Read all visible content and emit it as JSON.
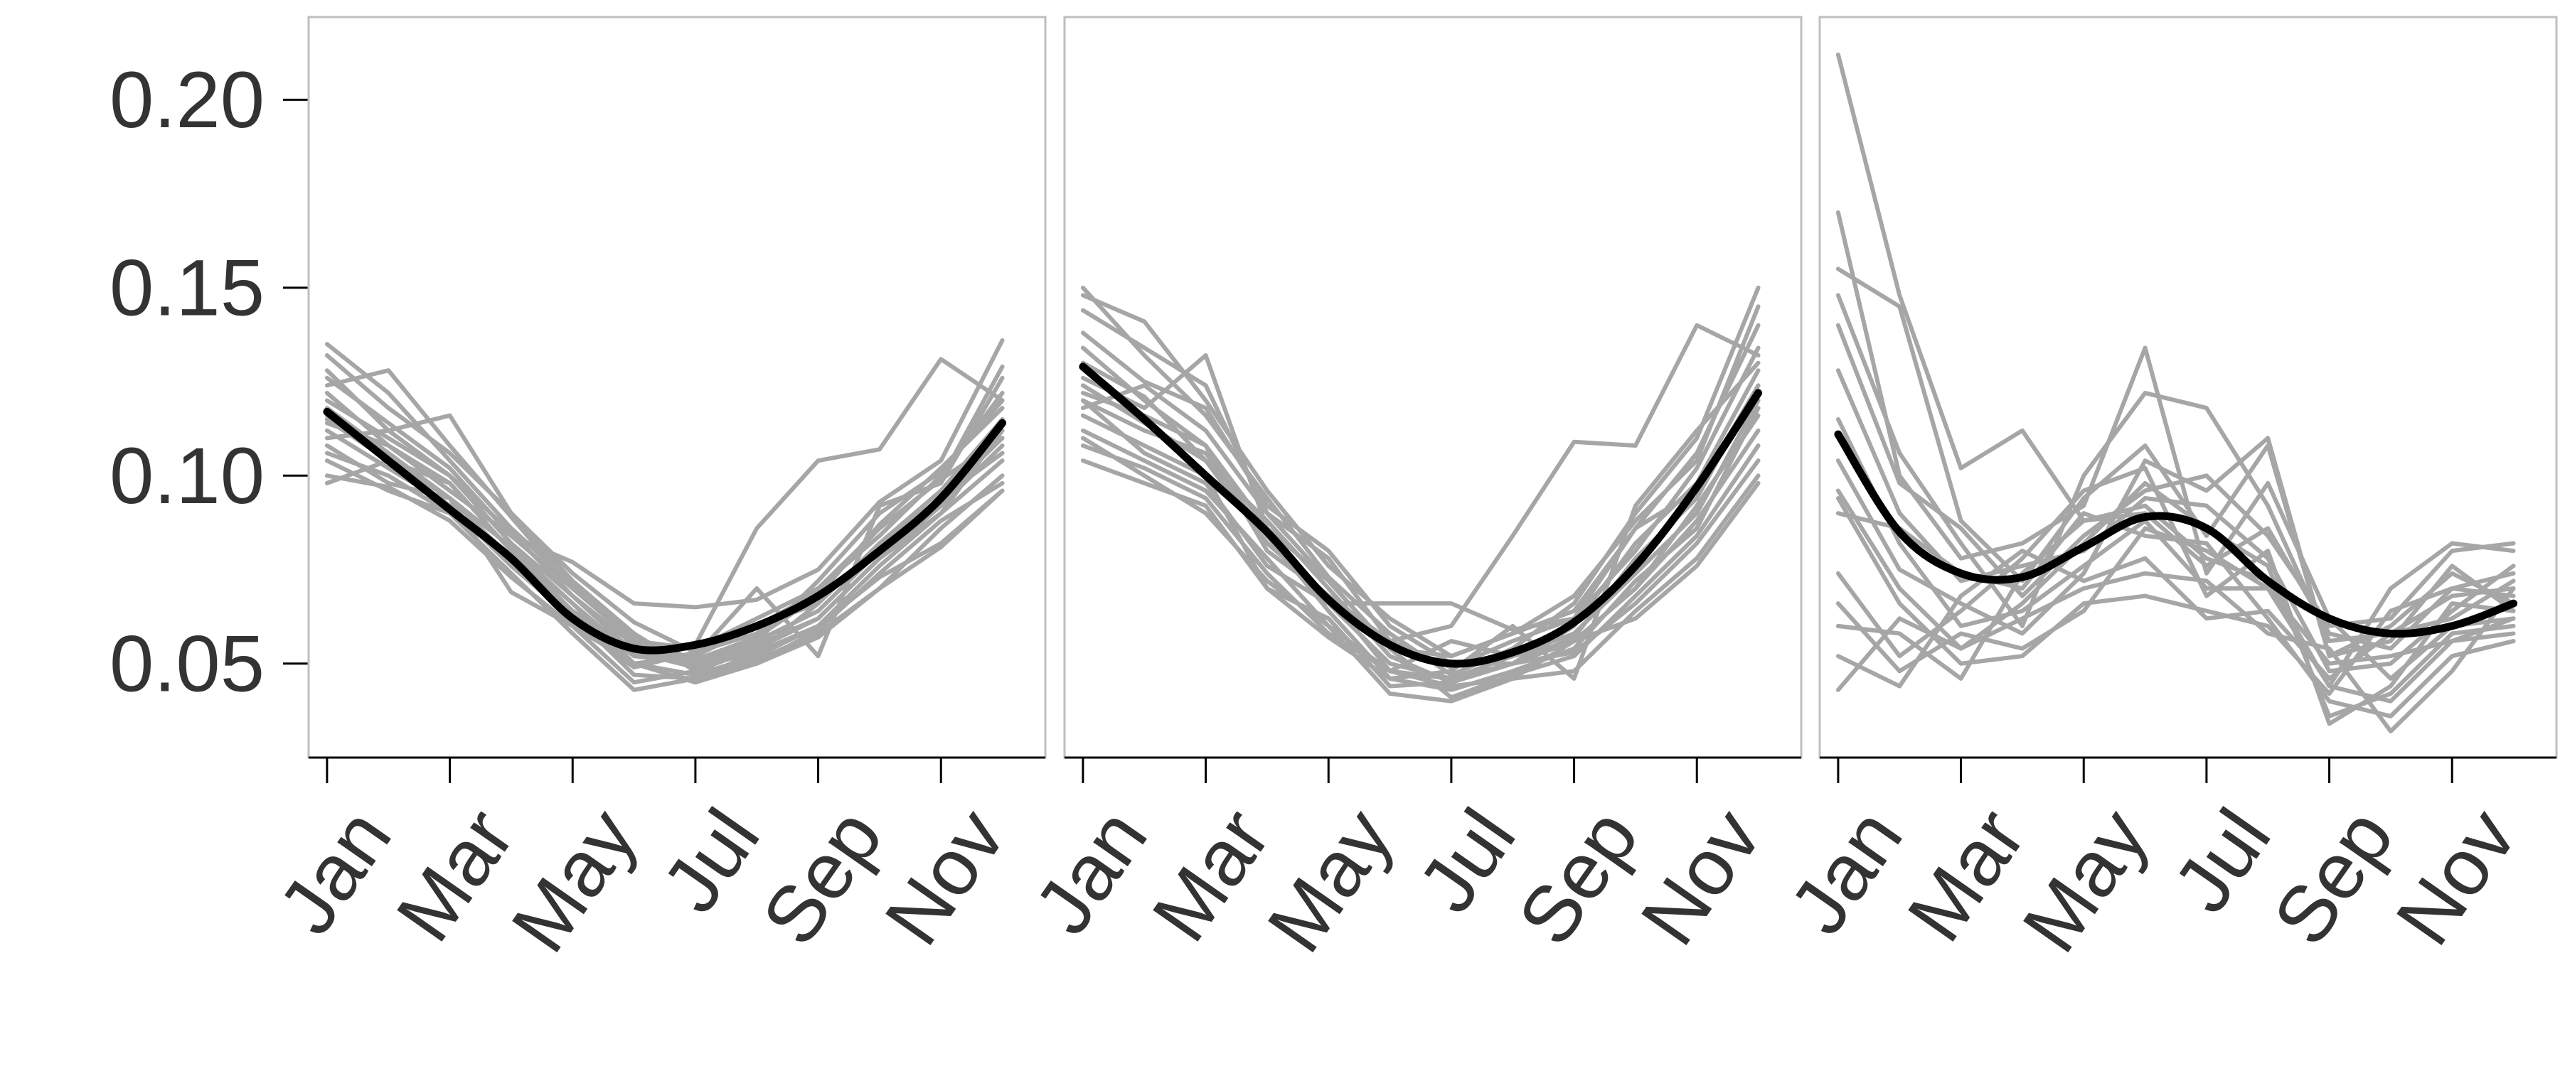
{
  "chart_data": {
    "type": "line",
    "x_ticks": [
      "Jan",
      "Mar",
      "May",
      "Jul",
      "Sep",
      "Nov"
    ],
    "y_ticks": [
      "0.05",
      "0.10",
      "0.15",
      "0.20"
    ],
    "y_tick_values": [
      0.05,
      0.1,
      0.15,
      0.2
    ],
    "ylim": [
      0.025,
      0.222
    ],
    "xlim": [
      0.7,
      12.7
    ],
    "grid": false,
    "colors": {
      "individual": "#a6a6a6",
      "mean": "#000000",
      "axis": "#000000",
      "frame": "#bfbfbf",
      "text": "#333333"
    },
    "panels": [
      {
        "x": [
          1,
          2,
          3,
          4,
          5,
          6,
          7,
          8,
          9,
          10,
          11,
          12
        ],
        "mean": [
          0.117,
          0.104,
          0.091,
          0.078,
          0.062,
          0.054,
          0.055,
          0.06,
          0.068,
          0.08,
          0.094,
          0.114
        ],
        "series": [
          {
            "values": [
              0.135,
              0.122,
              0.104,
              0.086,
              0.071,
              0.056,
              0.05,
              0.056,
              0.072,
              0.09,
              0.101,
              0.12
            ]
          },
          {
            "values": [
              0.132,
              0.118,
              0.106,
              0.09,
              0.074,
              0.061,
              0.053,
              0.058,
              0.07,
              0.086,
              0.099,
              0.11
            ]
          },
          {
            "values": [
              0.128,
              0.112,
              0.1,
              0.082,
              0.068,
              0.055,
              0.049,
              0.053,
              0.066,
              0.082,
              0.094,
              0.106
            ]
          },
          {
            "values": [
              0.124,
              0.128,
              0.108,
              0.089,
              0.07,
              0.057,
              0.051,
              0.057,
              0.068,
              0.087,
              0.102,
              0.118
            ]
          },
          {
            "values": [
              0.12,
              0.11,
              0.1,
              0.085,
              0.068,
              0.053,
              0.049,
              0.055,
              0.062,
              0.078,
              0.092,
              0.108
            ]
          },
          {
            "values": [
              0.118,
              0.106,
              0.094,
              0.081,
              0.066,
              0.05,
              0.047,
              0.052,
              0.06,
              0.076,
              0.09,
              0.104
            ]
          },
          {
            "values": [
              0.115,
              0.104,
              0.098,
              0.08,
              0.064,
              0.052,
              0.05,
              0.056,
              0.064,
              0.08,
              0.094,
              0.11
            ]
          },
          {
            "values": [
              0.112,
              0.102,
              0.092,
              0.076,
              0.063,
              0.047,
              0.046,
              0.051,
              0.058,
              0.07,
              0.086,
              0.1
            ]
          },
          {
            "values": [
              0.11,
              0.112,
              0.116,
              0.09,
              0.072,
              0.058,
              0.048,
              0.054,
              0.062,
              0.078,
              0.09,
              0.112
            ]
          },
          {
            "values": [
              0.108,
              0.098,
              0.094,
              0.069,
              0.06,
              0.045,
              0.048,
              0.05,
              0.059,
              0.074,
              0.088,
              0.098
            ]
          },
          {
            "values": [
              0.106,
              0.1,
              0.09,
              0.078,
              0.061,
              0.049,
              0.053,
              0.06,
              0.066,
              0.082,
              0.096,
              0.115
            ]
          },
          {
            "values": [
              0.104,
              0.096,
              0.09,
              0.074,
              0.058,
              0.043,
              0.046,
              0.053,
              0.06,
              0.073,
              0.082,
              0.096
            ]
          },
          {
            "values": [
              0.114,
              0.108,
              0.096,
              0.084,
              0.077,
              0.066,
              0.065,
              0.067,
              0.075,
              0.093,
              0.104,
              0.136
            ]
          },
          {
            "values": [
              0.1,
              0.097,
              0.088,
              0.073,
              0.06,
              0.05,
              0.045,
              0.05,
              0.057,
              0.07,
              0.081,
              0.096
            ]
          },
          {
            "values": [
              0.122,
              0.108,
              0.098,
              0.08,
              0.066,
              0.052,
              0.052,
              0.06,
              0.069,
              0.086,
              0.099,
              0.129
            ]
          },
          {
            "values": [
              0.116,
              0.104,
              0.094,
              0.078,
              0.064,
              0.054,
              0.055,
              0.086,
              0.104,
              0.107,
              0.131,
              0.12
            ]
          },
          {
            "values": [
              0.098,
              0.104,
              0.092,
              0.076,
              0.062,
              0.05,
              0.052,
              0.07,
              0.052,
              0.092,
              0.098,
              0.126
            ]
          },
          {
            "values": [
              0.126,
              0.114,
              0.102,
              0.084,
              0.07,
              0.056,
              0.054,
              0.062,
              0.07,
              0.084,
              0.1,
              0.122
            ]
          }
        ]
      },
      {
        "x": [
          1,
          2,
          3,
          4,
          5,
          6,
          7,
          8,
          9,
          10,
          11,
          12
        ],
        "mean": [
          0.129,
          0.115,
          0.1,
          0.085,
          0.067,
          0.055,
          0.05,
          0.053,
          0.061,
          0.076,
          0.097,
          0.122
        ],
        "series": [
          {
            "values": [
              0.15,
              0.132,
              0.116,
              0.094,
              0.073,
              0.058,
              0.047,
              0.054,
              0.066,
              0.09,
              0.11,
              0.15
            ]
          },
          {
            "values": [
              0.148,
              0.141,
              0.12,
              0.096,
              0.076,
              0.062,
              0.052,
              0.058,
              0.064,
              0.086,
              0.106,
              0.14
            ]
          },
          {
            "values": [
              0.144,
              0.134,
              0.124,
              0.09,
              0.078,
              0.056,
              0.049,
              0.056,
              0.062,
              0.08,
              0.102,
              0.134
            ]
          },
          {
            "values": [
              0.138,
              0.125,
              0.118,
              0.092,
              0.08,
              0.06,
              0.05,
              0.05,
              0.06,
              0.082,
              0.098,
              0.128
            ]
          },
          {
            "values": [
              0.13,
              0.121,
              0.104,
              0.088,
              0.07,
              0.052,
              0.045,
              0.05,
              0.057,
              0.078,
              0.094,
              0.124
            ]
          },
          {
            "values": [
              0.126,
              0.118,
              0.132,
              0.086,
              0.066,
              0.05,
              0.046,
              0.052,
              0.058,
              0.074,
              0.09,
              0.12
            ]
          },
          {
            "values": [
              0.122,
              0.116,
              0.108,
              0.08,
              0.068,
              0.048,
              0.044,
              0.046,
              0.056,
              0.07,
              0.088,
              0.112
            ]
          },
          {
            "values": [
              0.12,
              0.112,
              0.106,
              0.084,
              0.064,
              0.046,
              0.043,
              0.048,
              0.054,
              0.072,
              0.086,
              0.118
            ]
          },
          {
            "values": [
              0.118,
              0.124,
              0.112,
              0.09,
              0.072,
              0.054,
              0.041,
              0.047,
              0.052,
              0.068,
              0.084,
              0.108
            ]
          },
          {
            "values": [
              0.116,
              0.108,
              0.1,
              0.07,
              0.062,
              0.044,
              0.045,
              0.05,
              0.053,
              0.066,
              0.082,
              0.104
            ]
          },
          {
            "values": [
              0.112,
              0.104,
              0.096,
              0.078,
              0.06,
              0.042,
              0.04,
              0.046,
              0.048,
              0.064,
              0.078,
              0.1
            ]
          },
          {
            "values": [
              0.12,
              0.106,
              0.098,
              0.076,
              0.066,
              0.066,
              0.066,
              0.059,
              0.062,
              0.086,
              0.096,
              0.124
            ]
          },
          {
            "values": [
              0.108,
              0.102,
              0.094,
              0.074,
              0.058,
              0.048,
              0.056,
              0.052,
              0.056,
              0.062,
              0.076,
              0.098
            ]
          },
          {
            "values": [
              0.124,
              0.114,
              0.104,
              0.082,
              0.068,
              0.056,
              0.06,
              0.084,
              0.109,
              0.108,
              0.14,
              0.132
            ]
          },
          {
            "values": [
              0.104,
              0.098,
              0.092,
              0.07,
              0.057,
              0.046,
              0.048,
              0.06,
              0.046,
              0.092,
              0.112,
              0.13
            ]
          },
          {
            "values": [
              0.134,
              0.12,
              0.108,
              0.086,
              0.072,
              0.054,
              0.052,
              0.058,
              0.068,
              0.088,
              0.104,
              0.145
            ]
          },
          {
            "values": [
              0.11,
              0.1,
              0.09,
              0.072,
              0.06,
              0.048,
              0.046,
              0.05,
              0.056,
              0.07,
              0.092,
              0.116
            ]
          }
        ]
      },
      {
        "x": [
          1,
          2,
          3,
          4,
          5,
          6,
          7,
          8,
          9,
          10,
          11,
          12
        ],
        "mean": [
          0.111,
          0.085,
          0.074,
          0.073,
          0.081,
          0.089,
          0.086,
          0.072,
          0.062,
          0.058,
          0.06,
          0.066
        ],
        "series": [
          {
            "values": [
              0.212,
              0.148,
              0.102,
              0.112,
              0.088,
              0.09,
              0.076,
              0.086,
              0.058,
              0.054,
              0.07,
              0.074
            ]
          },
          {
            "values": [
              0.17,
              0.1,
              0.078,
              0.082,
              0.092,
              0.134,
              0.074,
              0.098,
              0.062,
              0.046,
              0.06,
              0.062
            ]
          },
          {
            "values": [
              0.155,
              0.145,
              0.088,
              0.072,
              0.094,
              0.108,
              0.084,
              0.108,
              0.052,
              0.056,
              0.076,
              0.064
            ]
          },
          {
            "values": [
              0.148,
              0.106,
              0.082,
              0.06,
              0.1,
              0.122,
              0.118,
              0.092,
              0.056,
              0.058,
              0.068,
              0.07
            ]
          },
          {
            "values": [
              0.14,
              0.098,
              0.086,
              0.068,
              0.084,
              0.096,
              0.1,
              0.084,
              0.06,
              0.062,
              0.08,
              0.082
            ]
          },
          {
            "values": [
              0.128,
              0.09,
              0.072,
              0.076,
              0.08,
              0.094,
              0.092,
              0.078,
              0.048,
              0.05,
              0.064,
              0.076
            ]
          },
          {
            "values": [
              0.115,
              0.082,
              0.06,
              0.064,
              0.076,
              0.088,
              0.07,
              0.07,
              0.044,
              0.04,
              0.056,
              0.058
            ]
          },
          {
            "values": [
              0.104,
              0.075,
              0.066,
              0.058,
              0.074,
              0.104,
              0.096,
              0.11,
              0.052,
              0.06,
              0.074,
              0.066
            ]
          },
          {
            "values": [
              0.096,
              0.07,
              0.054,
              0.066,
              0.082,
              0.098,
              0.086,
              0.076,
              0.036,
              0.042,
              0.058,
              0.06
            ]
          },
          {
            "values": [
              0.09,
              0.086,
              0.074,
              0.07,
              0.09,
              0.084,
              0.082,
              0.062,
              0.04,
              0.036,
              0.052,
              0.056
            ]
          },
          {
            "values": [
              0.074,
              0.052,
              0.064,
              0.078,
              0.096,
              0.102,
              0.068,
              0.08,
              0.034,
              0.044,
              0.066,
              0.064
            ]
          },
          {
            "values": [
              0.066,
              0.048,
              0.058,
              0.054,
              0.064,
              0.086,
              0.08,
              0.07,
              0.05,
              0.052,
              0.056,
              0.062
            ]
          },
          {
            "values": [
              0.06,
              0.058,
              0.046,
              0.074,
              0.088,
              0.092,
              0.078,
              0.072,
              0.044,
              0.07,
              0.082,
              0.08
            ]
          },
          {
            "values": [
              0.052,
              0.044,
              0.068,
              0.08,
              0.072,
              0.078,
              0.062,
              0.064,
              0.046,
              0.058,
              0.062,
              0.072
            ]
          },
          {
            "values": [
              0.043,
              0.062,
              0.054,
              0.062,
              0.07,
              0.074,
              0.072,
              0.058,
              0.054,
              0.032,
              0.048,
              0.07
            ]
          },
          {
            "values": [
              0.094,
              0.066,
              0.05,
              0.052,
              0.066,
              0.068,
              0.064,
              0.06,
              0.042,
              0.064,
              0.07,
              0.068
            ]
          }
        ]
      }
    ]
  }
}
